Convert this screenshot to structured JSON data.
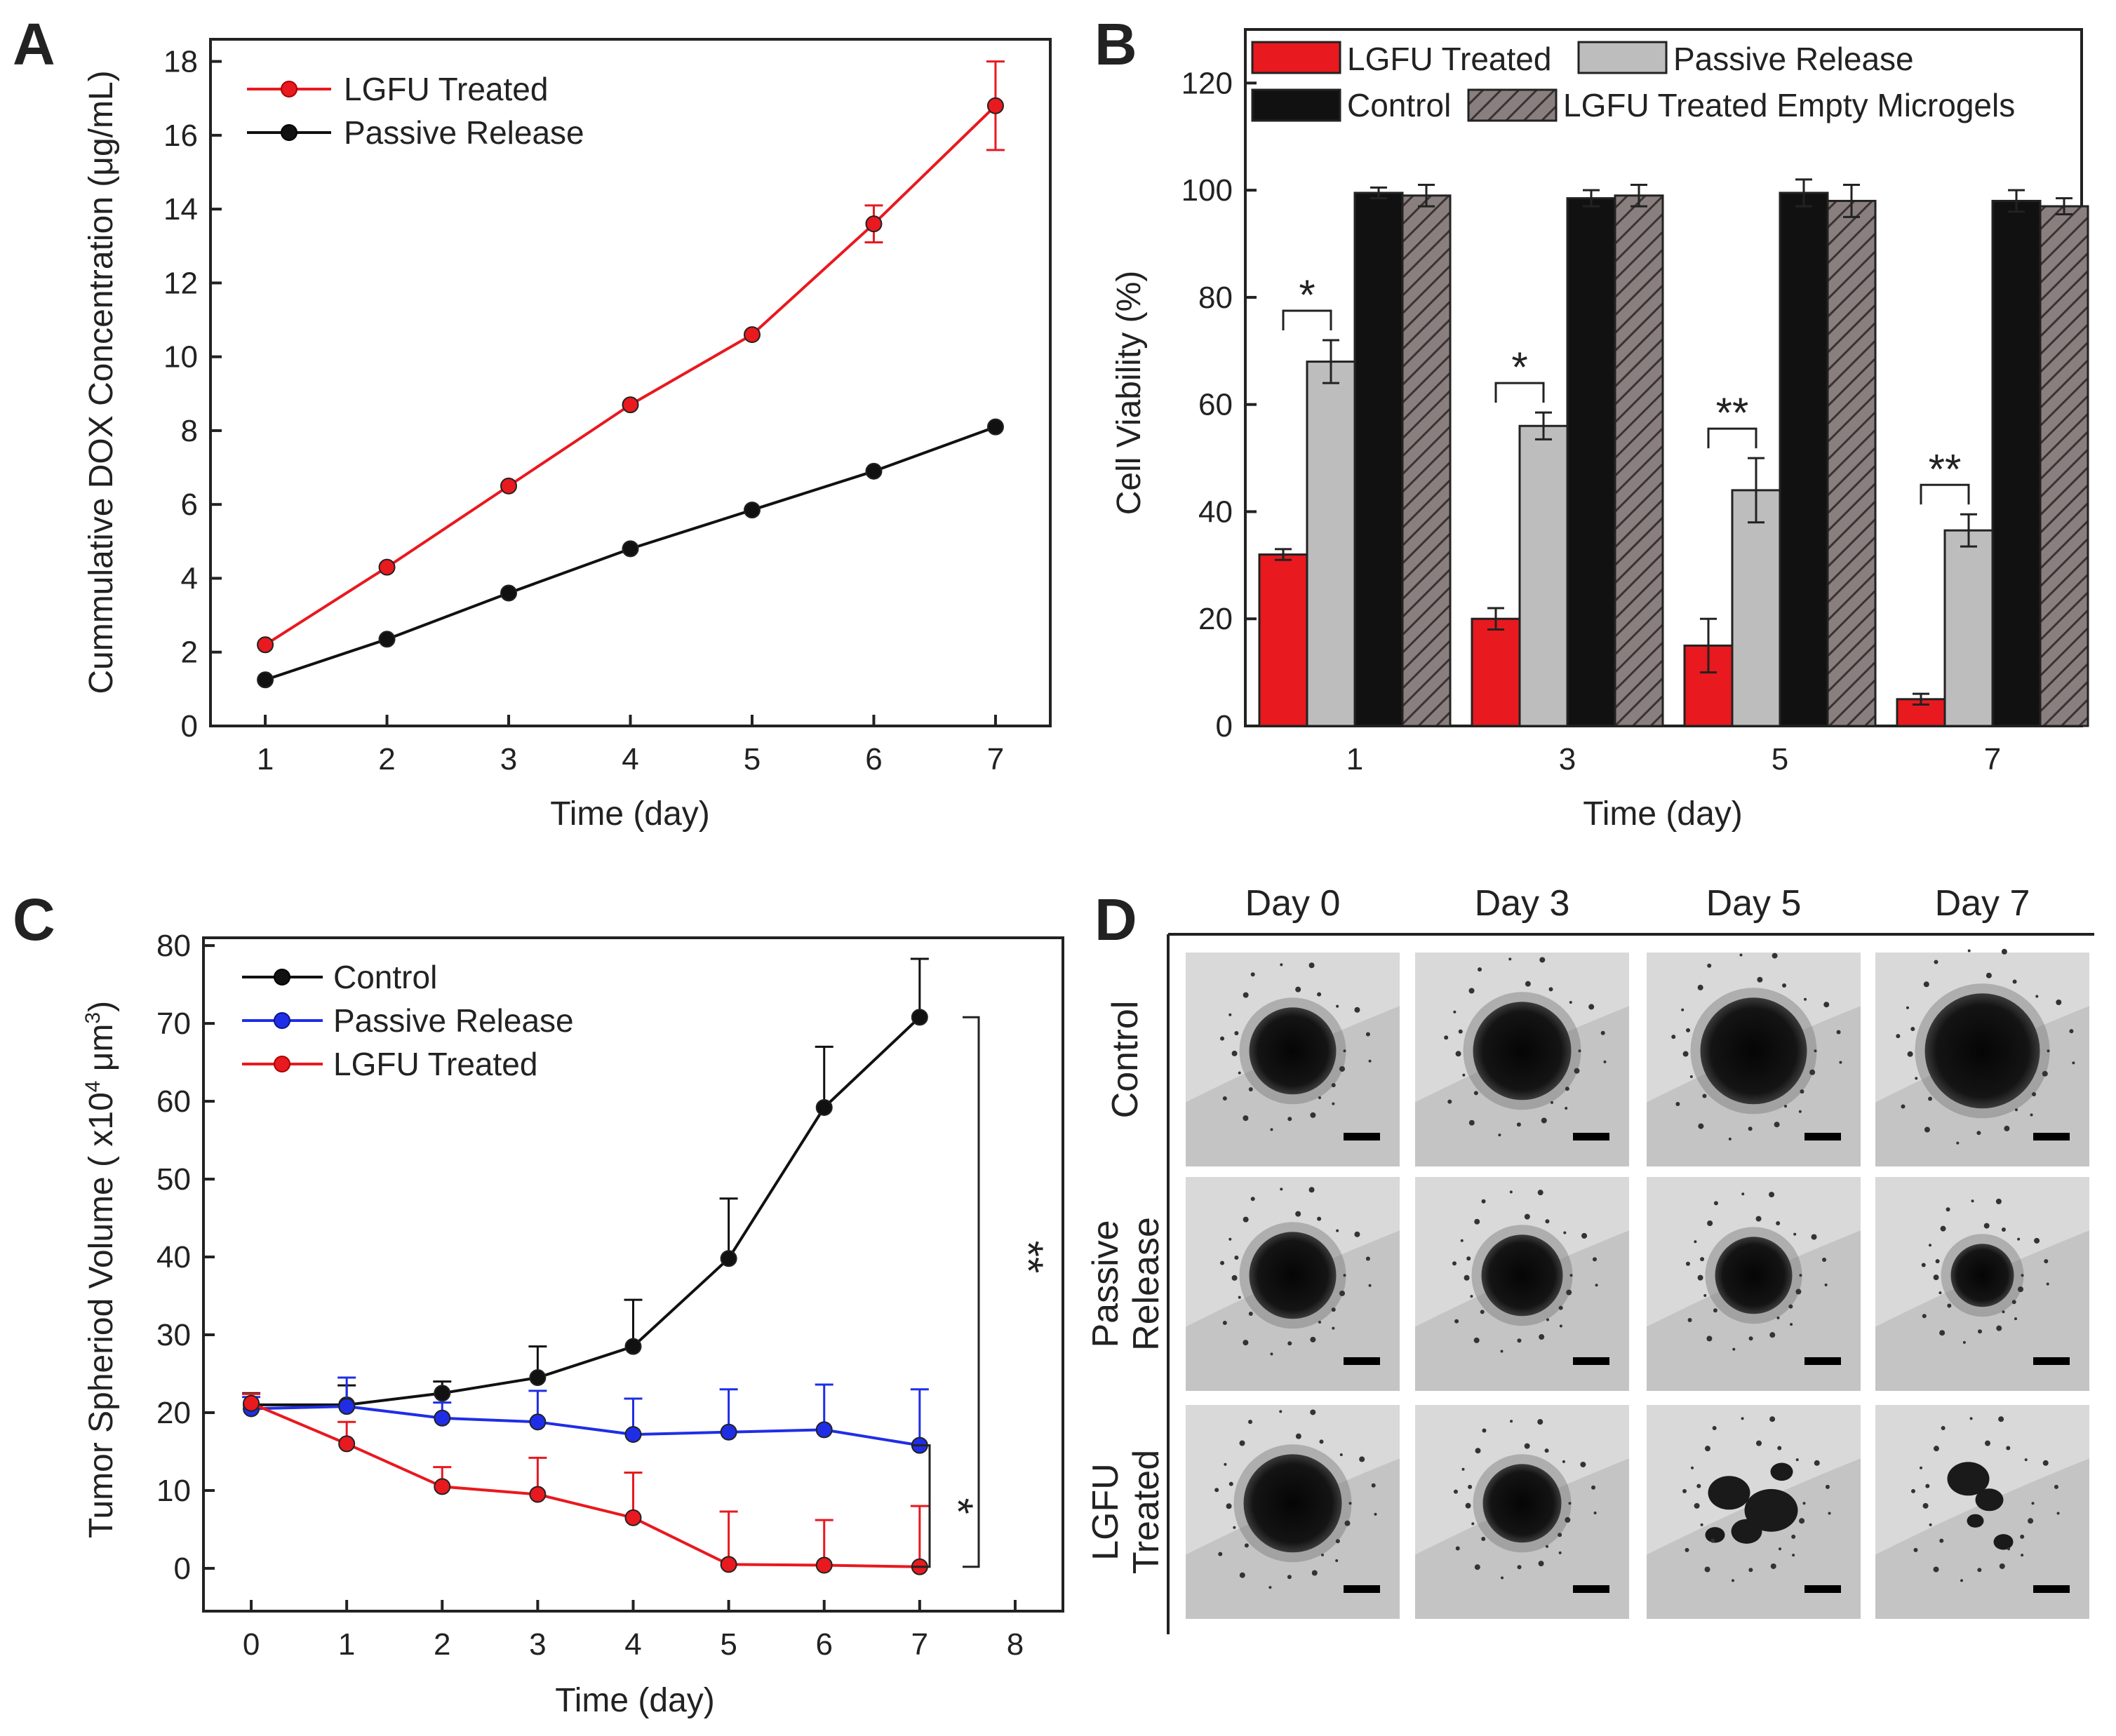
{
  "panels": {
    "a": {
      "letter": "A"
    },
    "b": {
      "letter": "B"
    },
    "c": {
      "letter": "C"
    },
    "d": {
      "letter": "D"
    }
  },
  "colors": {
    "red": "#e8191f",
    "black": "#111111",
    "blue": "#1f2ee6",
    "gray": "#bdbdbd",
    "hatch": "#6e6363",
    "axis": "#222222"
  },
  "chart_data": [
    {
      "id": "A",
      "type": "line",
      "xlabel": "Time (day)",
      "ylabel": "Cummulative DOX Concentration (μg/mL)",
      "xlim": [
        0.55,
        7.45
      ],
      "ylim": [
        0,
        18.6
      ],
      "xticks": [
        1,
        2,
        3,
        4,
        5,
        6,
        7
      ],
      "yticks": [
        0,
        2,
        4,
        6,
        8,
        10,
        12,
        14,
        16,
        18
      ],
      "x": [
        1,
        2,
        3,
        4,
        5,
        6,
        7
      ],
      "legend_position": "top-left",
      "series": [
        {
          "name": "LGFU Treated",
          "color": "#e8191f",
          "values": [
            2.2,
            4.3,
            6.5,
            8.7,
            10.6,
            13.6,
            16.8
          ],
          "errors": [
            0.1,
            0.1,
            0.1,
            0.1,
            0.1,
            0.5,
            1.2
          ]
        },
        {
          "name": "Passive Release",
          "color": "#111111",
          "values": [
            1.25,
            2.35,
            3.6,
            4.8,
            5.85,
            6.9,
            8.1
          ],
          "errors": [
            0.05,
            0.05,
            0.05,
            0.05,
            0.05,
            0.05,
            0.05
          ]
        }
      ]
    },
    {
      "id": "B",
      "type": "bar",
      "xlabel": "Time (day)",
      "ylabel": "Cell Viability (%)",
      "ylim": [
        0,
        130
      ],
      "yticks": [
        0,
        20,
        40,
        60,
        80,
        100,
        120
      ],
      "categories": [
        "1",
        "3",
        "5",
        "7"
      ],
      "legend_position": "top",
      "series": [
        {
          "name": "LGFU Treated",
          "style": "red",
          "values": [
            32,
            20,
            15,
            5
          ],
          "errors": [
            1,
            2,
            5,
            1
          ]
        },
        {
          "name": "Passive Release",
          "style": "gray",
          "values": [
            68,
            56,
            44,
            36.5
          ],
          "errors": [
            4,
            2.5,
            6,
            3
          ]
        },
        {
          "name": "Control",
          "style": "black",
          "values": [
            99.5,
            98.5,
            99.5,
            98
          ],
          "errors": [
            1,
            1.5,
            2.5,
            2
          ]
        },
        {
          "name": "LGFU Treated Empty Microgels",
          "style": "hatch",
          "values": [
            99,
            99,
            98,
            97
          ],
          "errors": [
            2,
            2,
            3,
            1.5
          ]
        }
      ],
      "annotations": [
        "*",
        "*",
        "**",
        "**"
      ]
    },
    {
      "id": "C",
      "type": "line",
      "xlabel": "Time (day)",
      "ylabel_main": "Tumor Spheriod Volume ( x10",
      "ylabel_exp1": "4",
      "ylabel_unit": " μm",
      "ylabel_exp2": "3",
      "ylabel_close": ")",
      "xlim": [
        -0.5,
        8.5
      ],
      "ylim": [
        -5.5,
        81
      ],
      "xticks": [
        0,
        1,
        2,
        3,
        4,
        5,
        6,
        7,
        8
      ],
      "yticks": [
        0,
        10,
        20,
        30,
        40,
        50,
        60,
        70,
        80
      ],
      "x": [
        0,
        1,
        2,
        3,
        4,
        5,
        6,
        7
      ],
      "legend_position": "top-left",
      "series": [
        {
          "name": "Control",
          "color": "#111111",
          "values": [
            21,
            21,
            22.5,
            24.5,
            28.5,
            39.8,
            59.2,
            70.8
          ],
          "errors": [
            1.5,
            2.5,
            1.5,
            4,
            6,
            7.7,
            7.8,
            7.5
          ]
        },
        {
          "name": "Passive Release",
          "color": "#1f2ee6",
          "values": [
            20.5,
            20.8,
            19.3,
            18.8,
            17.2,
            17.5,
            17.8,
            15.8
          ],
          "errors": [
            1.5,
            3.7,
            2,
            4,
            4.6,
            5.5,
            5.8,
            7.2
          ]
        },
        {
          "name": "LGFU Treated",
          "color": "#e8191f",
          "values": [
            21.2,
            16,
            10.5,
            9.5,
            6.5,
            0.5,
            0.4,
            0.2
          ],
          "errors": [
            1.2,
            2.8,
            2.5,
            4.7,
            5.8,
            6.8,
            5.8,
            7.8
          ]
        }
      ],
      "annotations": [
        "**",
        "*"
      ]
    }
  ],
  "micrographs": {
    "columns": [
      "Day 0",
      "Day 3",
      "Day 5",
      "Day 7"
    ],
    "rows": [
      {
        "label": [
          "Control"
        ]
      },
      {
        "label": [
          "Passive",
          "Release"
        ]
      },
      {
        "label": [
          "LGFU",
          "Treated"
        ]
      }
    ]
  }
}
